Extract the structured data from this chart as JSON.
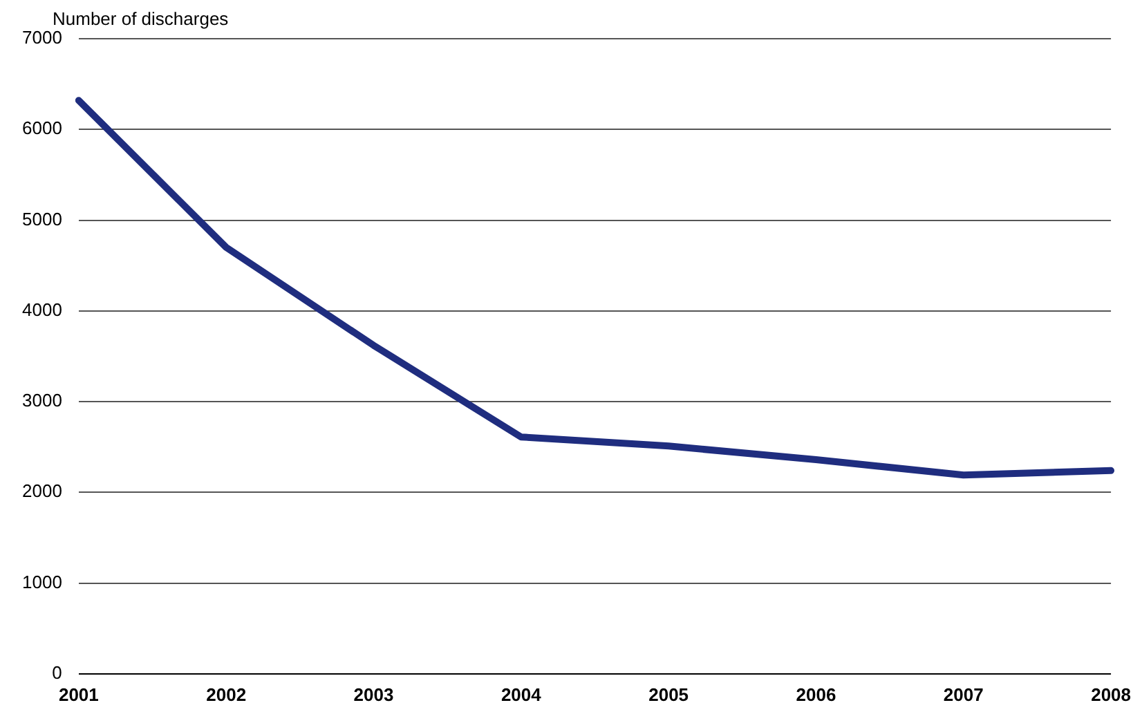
{
  "chart_data": {
    "type": "line",
    "ylabel": "Number of discharges",
    "categories": [
      "2001",
      "2002",
      "2003",
      "2004",
      "2005",
      "2006",
      "2007",
      "2008"
    ],
    "series": [
      {
        "color": "#1f2d7f",
        "values": [
          6320,
          4700,
          3620,
          2610,
          2510,
          2360,
          2190,
          2240
        ]
      }
    ],
    "ylim": [
      0,
      7000
    ],
    "yticks": [
      0,
      1000,
      2000,
      3000,
      4000,
      5000,
      6000,
      7000
    ],
    "grid": "y",
    "legend": false,
    "marker": "none",
    "line_style": "solid"
  }
}
